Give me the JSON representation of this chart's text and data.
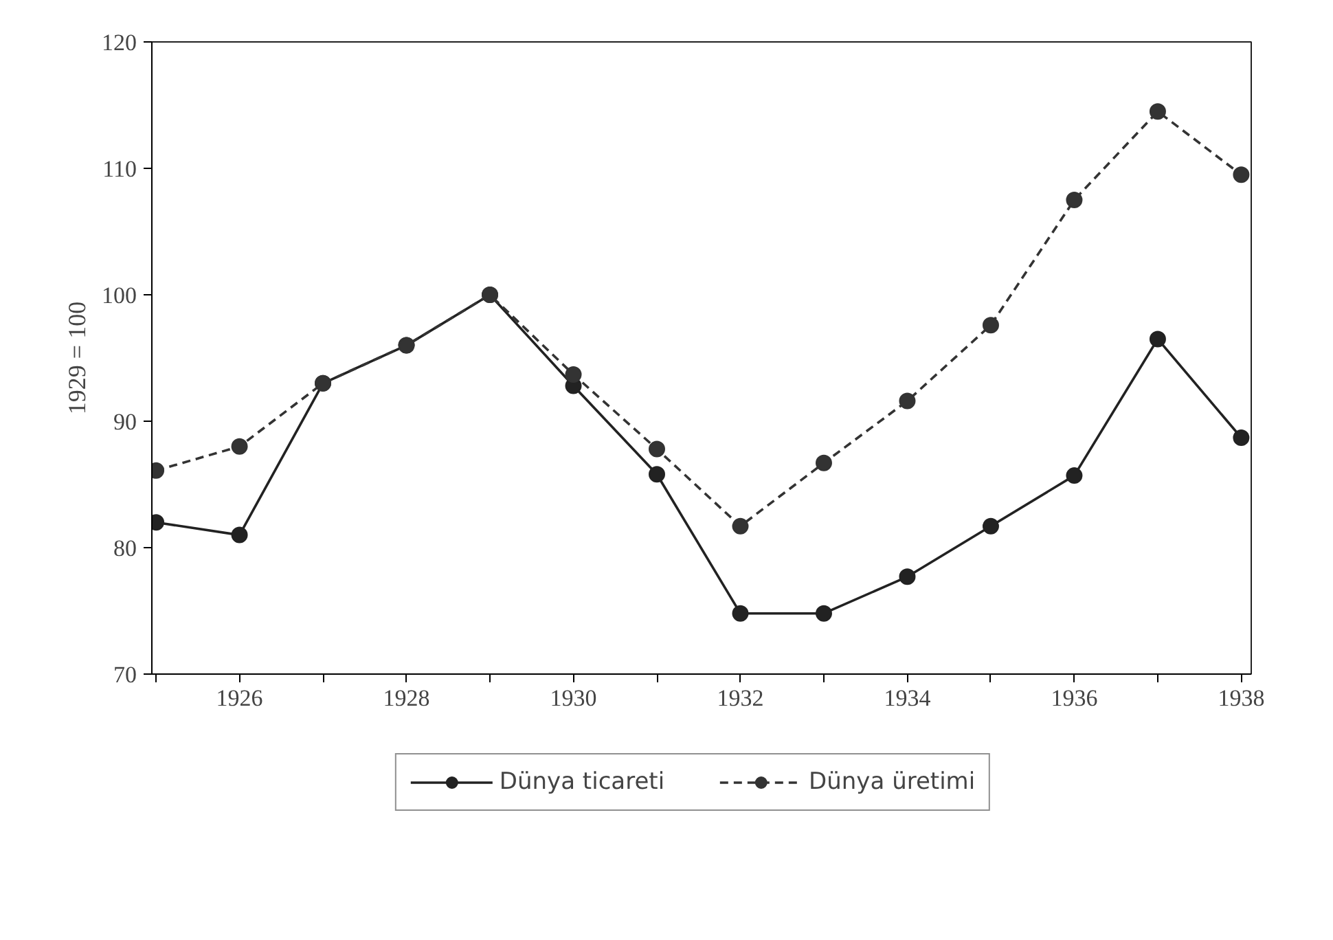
{
  "chart_data": {
    "type": "line",
    "ylabel": "1929 = 100",
    "x": [
      1925,
      1926,
      1927,
      1928,
      1929,
      1930,
      1931,
      1932,
      1933,
      1934,
      1935,
      1936,
      1937,
      1938
    ],
    "series": [
      {
        "name": "Dünya ticareti",
        "color": "#222222",
        "line_style": "solid",
        "values": [
          82,
          81,
          93,
          96,
          100,
          92.8,
          85.8,
          74.8,
          74.8,
          77.7,
          81.7,
          85.7,
          96.5,
          88.7
        ]
      },
      {
        "name": "Dünya üretimi",
        "color": "#333333",
        "line_style": "dashed",
        "values": [
          86.1,
          88,
          93,
          96,
          100,
          93.7,
          87.8,
          81.7,
          86.7,
          91.6,
          97.6,
          107.5,
          114.5,
          109.5
        ]
      }
    ],
    "marker": "circle",
    "xlim": [
      1924.95,
      1938.12
    ],
    "xticks": [
      {
        "value": 1925,
        "label": null
      },
      1926,
      {
        "value": 1927,
        "label": null
      },
      1928,
      {
        "value": 1929,
        "label": null
      },
      1930,
      {
        "value": 1931,
        "label": null
      },
      1932,
      {
        "value": 1933,
        "label": null
      },
      1934,
      {
        "value": 1935,
        "label": null
      },
      1936,
      {
        "value": 1937,
        "label": null
      },
      1938
    ],
    "ylim": [
      70,
      120
    ],
    "yticks": [
      70,
      80,
      90,
      100,
      110,
      120
    ],
    "grid": false,
    "legend": "bottom"
  }
}
